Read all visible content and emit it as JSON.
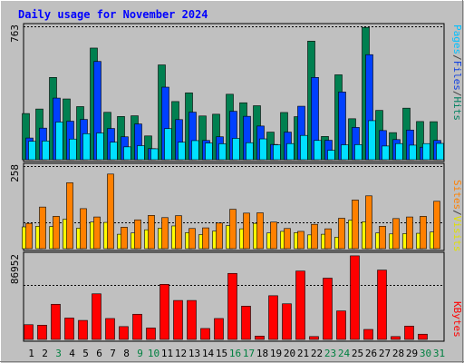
{
  "title": "Daily usage for November 2024",
  "panels": {
    "top": {
      "max_label": "763",
      "right_labels": [
        {
          "text": "Pages",
          "color": "#00c0ff"
        },
        {
          "text": "/",
          "color": "#404040"
        },
        {
          "text": "Files",
          "color": "#1040e0"
        },
        {
          "text": "/",
          "color": "#404040"
        },
        {
          "text": "Hits",
          "color": "#008060"
        }
      ]
    },
    "middle": {
      "max_label": "258",
      "right_labels": [
        {
          "text": "Sites",
          "color": "#ff8000"
        },
        {
          "text": "/",
          "color": "#404040"
        },
        {
          "text": "Visits",
          "color": "#e0e000"
        }
      ]
    },
    "bottom": {
      "max_label": "86952",
      "right_labels": [
        {
          "text": "KBytes",
          "color": "#ff0000"
        }
      ]
    }
  },
  "colors": {
    "hits": "#008050",
    "files": "#0040ff",
    "pages": "#00e0ff",
    "visits": "#ffff00",
    "sites": "#ff8000",
    "kbytes": "#ff0000",
    "title": "#0000ff",
    "day_weekday": "#000000",
    "day_weekend": "#008040",
    "bg": "#c0c0c0"
  },
  "chart_data": {
    "type": "bar",
    "title": "Daily usage for November 2024",
    "categories": [
      "1",
      "2",
      "3",
      "4",
      "5",
      "6",
      "7",
      "8",
      "9",
      "10",
      "11",
      "12",
      "13",
      "14",
      "15",
      "16",
      "17",
      "18",
      "19",
      "20",
      "21",
      "22",
      "23",
      "24",
      "25",
      "26",
      "27",
      "28",
      "29",
      "30",
      "31"
    ],
    "weekend_days": [
      "3",
      "9",
      "10",
      "16",
      "17",
      "23",
      "24",
      "30",
      "31"
    ],
    "panels": [
      {
        "name": "top",
        "ylim": [
          0,
          763
        ],
        "series": [
          {
            "name": "Hits",
            "values": [
              266,
              292,
              474,
              350,
              306,
              643,
              273,
              249,
              253,
              137,
              546,
              335,
              385,
              252,
              262,
              377,
              328,
              311,
              159,
              272,
              248,
              683,
              134,
              489,
              236,
              762,
              284,
              156,
              297,
              220,
              219
            ]
          },
          {
            "name": "Files",
            "values": [
              125,
              182,
              355,
              222,
              232,
              566,
              180,
              132,
              206,
              64,
              418,
              231,
              274,
              111,
              132,
              279,
              250,
              194,
              88,
              159,
              308,
              474,
              112,
              390,
              186,
              605,
              168,
              116,
              171,
              72,
              111
            ]
          },
          {
            "name": "Pages",
            "values": [
              106,
              108,
              217,
              119,
              150,
              154,
              101,
              74,
              81,
              63,
              179,
              101,
              110,
              96,
              92,
              123,
              98,
              120,
              86,
              93,
              140,
              111,
              54,
              86,
              87,
              225,
              79,
              93,
              84,
              93,
              94
            ]
          }
        ]
      },
      {
        "name": "middle",
        "ylim": [
          0,
          258
        ],
        "series": [
          {
            "name": "Sites",
            "values": [
              79,
              130,
              101,
              206,
              125,
              99,
              233,
              67,
              90,
              104,
              97,
              103,
              63,
              65,
              80,
              123,
              111,
              112,
              83,
              63,
              54,
              76,
              62,
              95,
              152,
              165,
              70,
              94,
              99,
              101,
              148
            ]
          },
          {
            "name": "Visits",
            "values": [
              68,
              70,
              69,
              92,
              64,
              83,
              82,
              45,
              49,
              59,
              64,
              71,
              50,
              44,
              55,
              72,
              62,
              79,
              49,
              54,
              50,
              43,
              45,
              36,
              89,
              84,
              49,
              46,
              47,
              48,
              52
            ]
          }
        ]
      },
      {
        "name": "bottom",
        "ylim": [
          0,
          86952
        ],
        "series": [
          {
            "name": "KBytes",
            "values": [
              15500,
              15000,
              37000,
              22500,
              20000,
              48000,
              22000,
              13500,
              26500,
              12000,
              58000,
              41000,
              41000,
              11500,
              22000,
              69500,
              35000,
              3500,
              46000,
              37500,
              72000,
              3000,
              64500,
              30000,
              88000,
              10500,
              73000,
              3000,
              14000,
              5500,
              0
            ]
          }
        ]
      }
    ]
  }
}
